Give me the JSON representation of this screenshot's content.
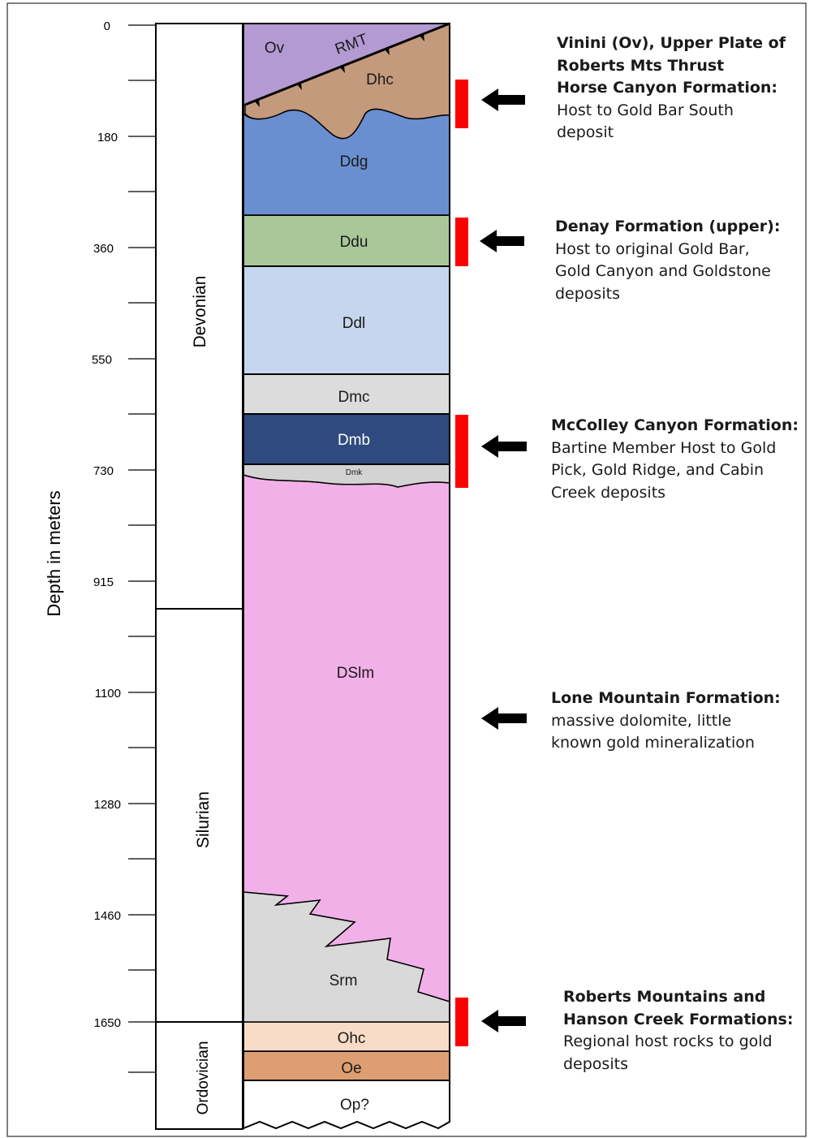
{
  "axis": {
    "label": "Depth in meters",
    "ticks": [
      "0",
      "180",
      "360",
      "550",
      "730",
      "915",
      "1100",
      "1280",
      "1460",
      "1650"
    ]
  },
  "periods": [
    "Devonian",
    "Silurian",
    "Ordovician"
  ],
  "units": {
    "ov": "Ov",
    "rmt": "RMT",
    "dhc": "Dhc",
    "ddg": "Ddg",
    "ddu": "Ddu",
    "ddl": "Ddl",
    "dmc": "Dmc",
    "dmb": "Dmb",
    "dmk": "Dmk",
    "dslm": "DSlm",
    "srm": "Srm",
    "ohc": "Ohc",
    "oe": "Oe",
    "op": "Op?"
  },
  "colors": {
    "ov": "#b49ad2",
    "dhc": "#c49a7c",
    "ddg": "#6a8fd0",
    "ddu": "#a9c89a",
    "ddl": "#c5d6ee",
    "dmc": "#dcdcdc",
    "dmb": "#2f4a7e",
    "dmk": "#d3d3d3",
    "dslm": "#f2b0e8",
    "srm": "#d9d9d9",
    "ohc": "#f9dcc7",
    "oe": "#dd9e72",
    "host_marker": "#ff0000",
    "arrow": "#000000"
  },
  "annotations": [
    {
      "lines": [
        {
          "text": "Vinini (Ov), Upper Plate of",
          "bold": true
        },
        {
          "text": "Roberts Mts Thrust",
          "bold": true
        },
        {
          "text": "Horse Canyon Formation:",
          "bold": true
        },
        {
          "text": "Host to Gold Bar South",
          "bold": false
        },
        {
          "text": "deposit",
          "bold": false
        }
      ]
    },
    {
      "lines": [
        {
          "text": "Denay Formation (upper):",
          "bold": true
        },
        {
          "text": "Host to original Gold Bar,",
          "bold": false
        },
        {
          "text": "Gold Canyon and Goldstone",
          "bold": false
        },
        {
          "text": "deposits",
          "bold": false
        }
      ]
    },
    {
      "lines": [
        {
          "text": "McColley Canyon Formation:",
          "bold": true
        },
        {
          "text": "Bartine Member Host to Gold",
          "bold": false
        },
        {
          "text": "Pick, Gold Ridge, and Cabin",
          "bold": false
        },
        {
          "text": "Creek deposits",
          "bold": false
        }
      ]
    },
    {
      "lines": [
        {
          "text": "Lone Mountain Formation:",
          "bold": true
        },
        {
          "text": "massive dolomite, little",
          "bold": false
        },
        {
          "text": "known gold mineralization",
          "bold": false
        }
      ]
    },
    {
      "lines": [
        {
          "text": "Roberts Mountains and",
          "bold": true
        },
        {
          "text": "Hanson Creek Formations:",
          "bold": true
        },
        {
          "text": "Regional host rocks to gold",
          "bold": false
        },
        {
          "text": "deposits",
          "bold": false
        }
      ]
    }
  ]
}
